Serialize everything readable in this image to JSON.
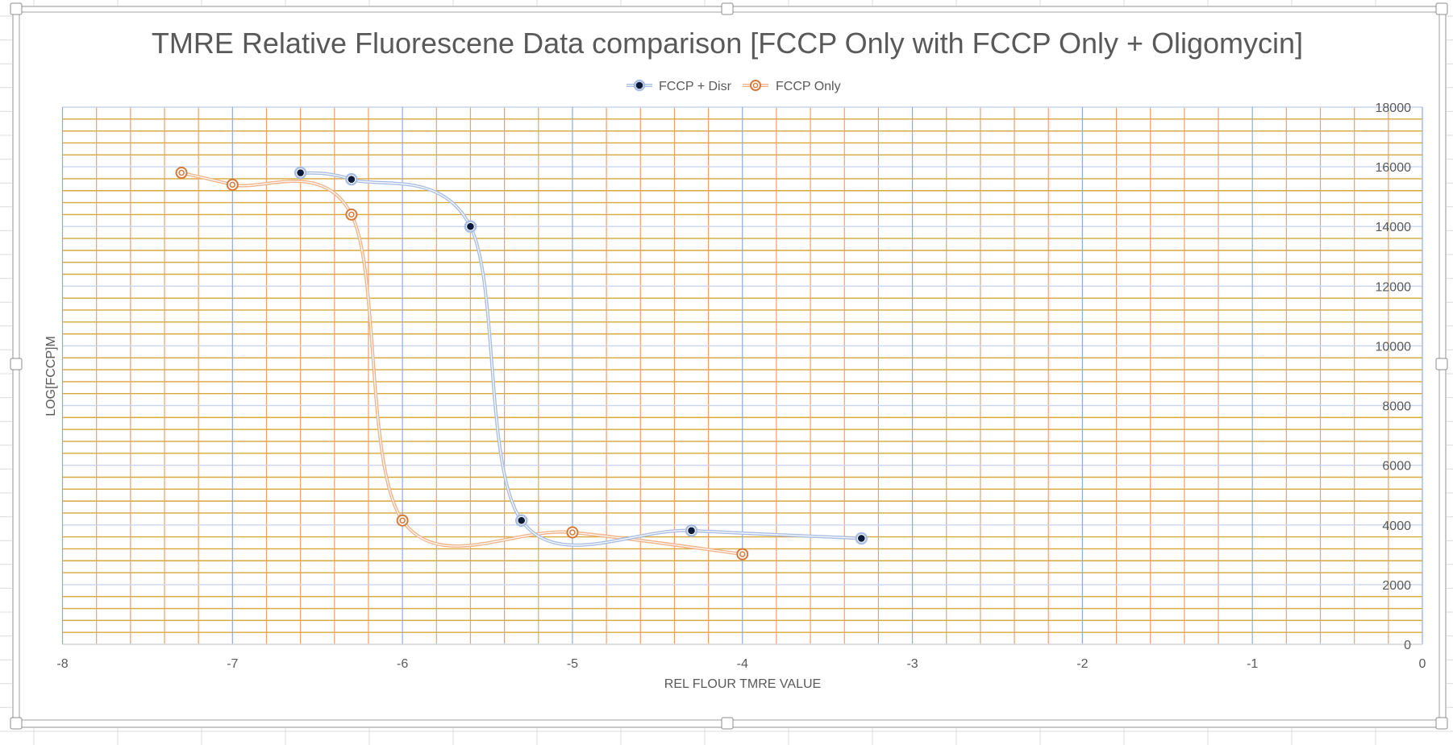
{
  "window": {
    "type": "spreadsheet-embedded-chart",
    "selected": true
  },
  "colors": {
    "series_blue": "#4472c4",
    "series_blue_line": "#a9bde3",
    "series_blue_marker_fill": "#0d1b3a",
    "series_orange": "#d4793a",
    "series_orange_line": "#f0b48b",
    "major_grid": "#c9d5ee",
    "major_vgrid": "#8eaadc",
    "minor_hgrid": "#d8a73a",
    "minor_vgrid": "#ef9f6c",
    "text": "#595959"
  },
  "chart_data": {
    "type": "scatter",
    "title": "TMRE Relative Fluorescene Data comparison [FCCP Only with FCCP Only + Oligomycin]",
    "xlabel": "REL FLOUR TMRE VALUE",
    "ylabel": "LOG[FCCP]M",
    "xlim": [
      -8,
      0
    ],
    "ylim": [
      0,
      18000
    ],
    "x_ticks": [
      "-8",
      "-7",
      "-6",
      "-5",
      "-4",
      "-3",
      "-2",
      "-1",
      "0"
    ],
    "y_ticks": [
      "0",
      "2000",
      "4000",
      "6000",
      "8000",
      "10000",
      "12000",
      "14000",
      "16000",
      "18000"
    ],
    "y_axis_position": "right",
    "x_major_unit": 1,
    "x_minor_unit": 0.2,
    "y_major_unit": 2000,
    "y_minor_unit": 400,
    "grid": true,
    "smoothed_lines": true,
    "legend_position": "top",
    "series": [
      {
        "name": "FCCP + Disr",
        "color": "#4472c4",
        "marker": "filled-circle",
        "x": [
          -6.6,
          -6.3,
          -5.6,
          -5.3,
          -4.3,
          -3.3
        ],
        "y": [
          15800,
          15580,
          14000,
          4150,
          3810,
          3550
        ]
      },
      {
        "name": "FCCP Only",
        "color": "#d4793a",
        "marker": "ring-circle",
        "x": [
          -7.3,
          -7.0,
          -6.3,
          -6.0,
          -5.0,
          -4.0
        ],
        "y": [
          15800,
          15400,
          14400,
          4150,
          3750,
          3020
        ]
      }
    ]
  }
}
